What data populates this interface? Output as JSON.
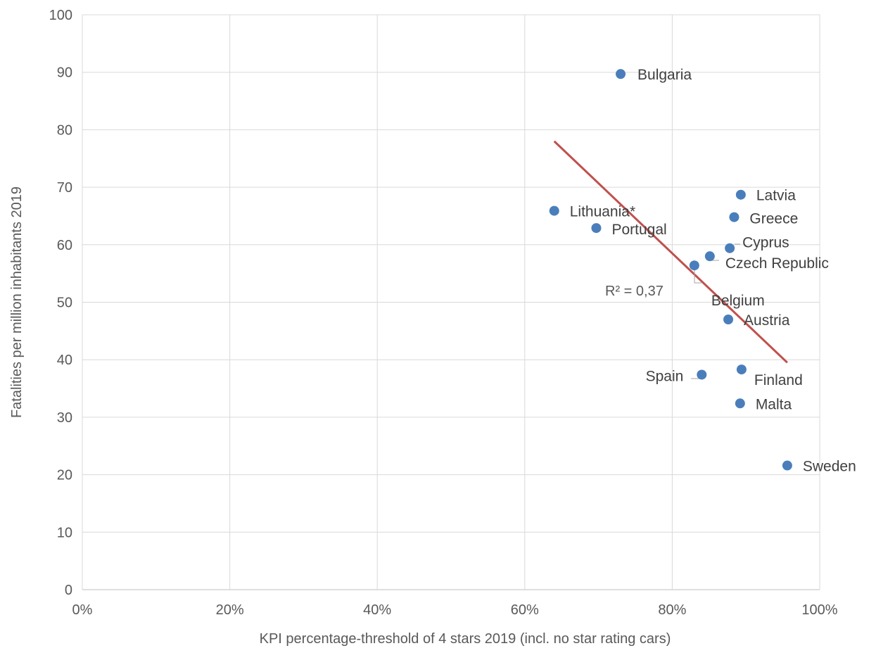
{
  "chart_data": {
    "type": "scatter",
    "title": "",
    "xlabel": "KPI percentage-threshold of 4 stars 2019 (incl. no star rating cars)",
    "ylabel": "Fatalities per million inhabitants 2019",
    "xlim": [
      0,
      1
    ],
    "ylim": [
      0,
      100
    ],
    "x_ticks": [
      "0%",
      "20%",
      "40%",
      "60%",
      "80%",
      "100%"
    ],
    "y_ticks": [
      "0",
      "10",
      "20",
      "30",
      "40",
      "50",
      "60",
      "70",
      "80",
      "90",
      "100"
    ],
    "grid": true,
    "legend": "none",
    "marker_color": "#4a7ebb",
    "points": [
      {
        "label": "Bulgaria",
        "x": 0.73,
        "y": 89.7
      },
      {
        "label": "Latvia",
        "x": 0.893,
        "y": 68.7
      },
      {
        "label": "Lithuania*",
        "x": 0.64,
        "y": 65.9
      },
      {
        "label": "Greece",
        "x": 0.884,
        "y": 64.8
      },
      {
        "label": "Portugal",
        "x": 0.697,
        "y": 62.9
      },
      {
        "label": "Cyprus",
        "x": 0.878,
        "y": 59.4
      },
      {
        "label": "Czech Republic",
        "x": 0.851,
        "y": 58.0
      },
      {
        "label": "Belgium",
        "x": 0.83,
        "y": 56.4
      },
      {
        "label": "Austria",
        "x": 0.876,
        "y": 47.0
      },
      {
        "label": "Finland",
        "x": 0.894,
        "y": 38.3
      },
      {
        "label": "Spain",
        "x": 0.84,
        "y": 37.4
      },
      {
        "label": "Malta",
        "x": 0.892,
        "y": 32.4
      },
      {
        "label": "Sweden",
        "x": 0.956,
        "y": 21.6
      }
    ],
    "trendline": {
      "type": "linear",
      "color": "#c0504d",
      "x_range": [
        0.64,
        0.956
      ],
      "y_start": 78.0,
      "y_end": 39.5,
      "r_squared_label": "R² = 0,37"
    }
  }
}
